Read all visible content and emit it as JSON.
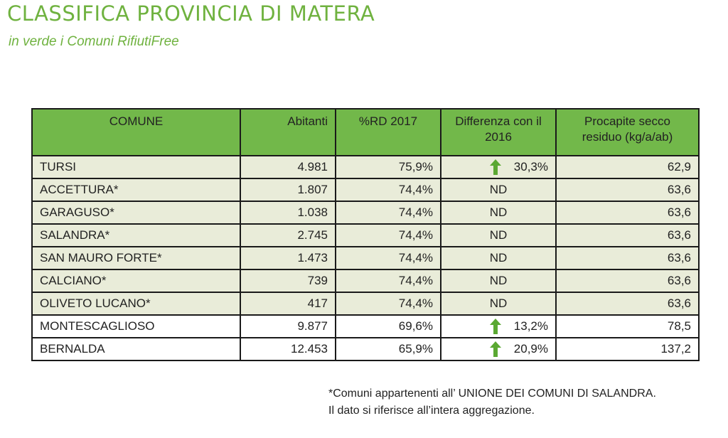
{
  "header": {
    "title": "CLASSIFICA PROVINCIA DI MATERA",
    "subtitle": "in verde i Comuni RifiutiFree"
  },
  "table": {
    "columns": [
      "COMUNE",
      "Abitanti",
      "%RD 2017",
      "Differenza con il 2016",
      "Procapite secco residuo (kg/a/ab)"
    ],
    "rows": [
      {
        "comune": "TURSI",
        "abitanti": "4.981",
        "rd": "75,9%",
        "diff": "30,3%",
        "diff_trend": "up",
        "procapite": "62,9",
        "rifiutifree": true
      },
      {
        "comune": "ACCETTURA*",
        "abitanti": "1.807",
        "rd": "74,4%",
        "diff": "ND",
        "diff_trend": "none",
        "procapite": "63,6",
        "rifiutifree": true
      },
      {
        "comune": "GARAGUSO*",
        "abitanti": "1.038",
        "rd": "74,4%",
        "diff": "ND",
        "diff_trend": "none",
        "procapite": "63,6",
        "rifiutifree": true
      },
      {
        "comune": "SALANDRA*",
        "abitanti": "2.745",
        "rd": "74,4%",
        "diff": "ND",
        "diff_trend": "none",
        "procapite": "63,6",
        "rifiutifree": true
      },
      {
        "comune": "SAN MAURO FORTE*",
        "abitanti": "1.473",
        "rd": "74,4%",
        "diff": "ND",
        "diff_trend": "none",
        "procapite": "63,6",
        "rifiutifree": true
      },
      {
        "comune": "CALCIANO*",
        "abitanti": "739",
        "rd": "74,4%",
        "diff": "ND",
        "diff_trend": "none",
        "procapite": "63,6",
        "rifiutifree": true
      },
      {
        "comune": "OLIVETO LUCANO*",
        "abitanti": "417",
        "rd": "74,4%",
        "diff": "ND",
        "diff_trend": "none",
        "procapite": "63,6",
        "rifiutifree": true
      },
      {
        "comune": "MONTESCAGLIOSO",
        "abitanti": "9.877",
        "rd": "69,6%",
        "diff": "13,2%",
        "diff_trend": "up",
        "procapite": "78,5",
        "rifiutifree": false
      },
      {
        "comune": "BERNALDA",
        "abitanti": "12.453",
        "rd": "65,9%",
        "diff": "20,9%",
        "diff_trend": "up",
        "procapite": "137,2",
        "rifiutifree": false
      }
    ]
  },
  "footnote": {
    "line1": "*Comuni appartenenti all’ UNIONE DEI COMUNI DI SALANDRA.",
    "line2": "Il dato si riferisce all’intera aggregazione."
  },
  "colors": {
    "brand_green": "#6fb23f",
    "header_green": "#72b84a",
    "rifiutifree_row": "#e9ecd9",
    "arrow_green": "#5aa832"
  },
  "icons": {
    "trend_up": "arrow-up-icon"
  }
}
